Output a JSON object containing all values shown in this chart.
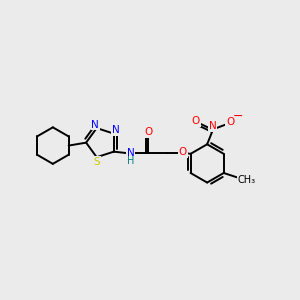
{
  "background_color": "#ebebeb",
  "bond_color": "#000000",
  "atom_colors": {
    "N": "#0000ff",
    "S": "#cccc00",
    "O": "#ff0000",
    "C": "#000000",
    "NH": "#008080"
  },
  "figsize": [
    3.0,
    3.0
  ],
  "dpi": 100
}
